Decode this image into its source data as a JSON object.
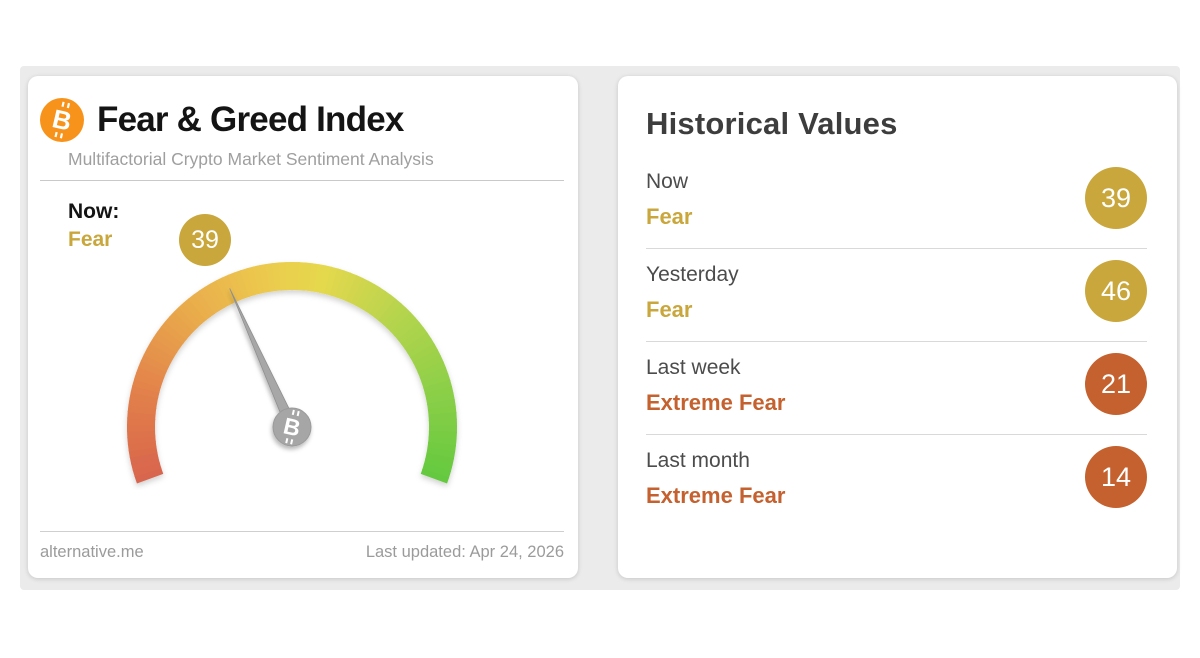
{
  "page": {
    "background": "#ffffff",
    "panel_background": "#ebebeb"
  },
  "icons": {
    "bitcoin_glyph": "B"
  },
  "left_card": {
    "title": "Fear & Greed Index",
    "subtitle": "Multifactorial Crypto Market Sentiment Analysis",
    "now_label": "Now:",
    "now_sentiment": "Fear",
    "now_sentiment_color": "#c9a73c",
    "footer": {
      "source": "alternative.me",
      "last_updated": "Last updated: Apr 24, 2026"
    }
  },
  "chart_data": {
    "type": "gauge",
    "title": "Fear & Greed Index",
    "value": 39,
    "classification": "Fear",
    "min": 0,
    "max": 100,
    "start_angle_deg": 200,
    "end_angle_deg": -20,
    "badge_color": "#c9a73c",
    "needle_color": "#a7a7a7",
    "needle_edge_color": "#8f8f8f",
    "hub_color": "#a6a6a6",
    "bitcoin_orange": "#f7931a",
    "gradient_stops": [
      {
        "t": 0.0,
        "color": "#d8644d"
      },
      {
        "t": 0.15,
        "color": "#e2814b"
      },
      {
        "t": 0.3,
        "color": "#e9a84c"
      },
      {
        "t": 0.45,
        "color": "#ecc94e"
      },
      {
        "t": 0.55,
        "color": "#e6d84d"
      },
      {
        "t": 0.7,
        "color": "#b5d44e"
      },
      {
        "t": 0.85,
        "color": "#8bcf47"
      },
      {
        "t": 1.0,
        "color": "#64c93f"
      }
    ]
  },
  "right_card": {
    "title": "Historical Values",
    "rows": [
      {
        "label": "Now",
        "sentiment": "Fear",
        "value": 39,
        "color": "#c9a73c"
      },
      {
        "label": "Yesterday",
        "sentiment": "Fear",
        "value": 46,
        "color": "#c9a73c"
      },
      {
        "label": "Last week",
        "sentiment": "Extreme Fear",
        "value": 21,
        "color": "#c4612e"
      },
      {
        "label": "Last month",
        "sentiment": "Extreme Fear",
        "value": 14,
        "color": "#c4612e"
      }
    ]
  }
}
